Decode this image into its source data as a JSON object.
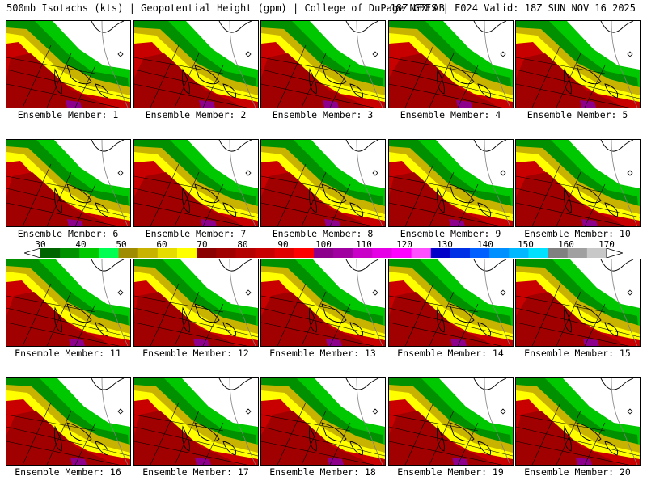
{
  "header": {
    "title": "500mb Isotachs (kts) | Geopotential Height (gpm) | College of DuPage NEXLAB",
    "valid": "18Z GEFS | F024 Valid: 18Z SUN NOV 16 2025"
  },
  "panels": [
    {
      "label": "Ensemble Member: 1"
    },
    {
      "label": "Ensemble Member: 2"
    },
    {
      "label": "Ensemble Member: 3"
    },
    {
      "label": "Ensemble Member: 4"
    },
    {
      "label": "Ensemble Member: 5"
    },
    {
      "label": "Ensemble Member: 6"
    },
    {
      "label": "Ensemble Member: 7"
    },
    {
      "label": "Ensemble Member: 8"
    },
    {
      "label": "Ensemble Member: 9"
    },
    {
      "label": "Ensemble Member: 10"
    },
    {
      "label": "Ensemble Member: 11"
    },
    {
      "label": "Ensemble Member: 12"
    },
    {
      "label": "Ensemble Member: 13"
    },
    {
      "label": "Ensemble Member: 14"
    },
    {
      "label": "Ensemble Member: 15"
    },
    {
      "label": "Ensemble Member: 16"
    },
    {
      "label": "Ensemble Member: 17"
    },
    {
      "label": "Ensemble Member: 18"
    },
    {
      "label": "Ensemble Member: 19"
    },
    {
      "label": "Ensemble Member: 20"
    }
  ],
  "colorbar": {
    "labels": [
      "30",
      "40",
      "50",
      "60",
      "70",
      "80",
      "90",
      "100",
      "110",
      "120",
      "130",
      "140",
      "150",
      "160",
      "170"
    ],
    "colors": [
      "#006400",
      "#009000",
      "#00c800",
      "#00ff50",
      "#a08c00",
      "#c8b400",
      "#e6dc00",
      "#ffff00",
      "#8b0000",
      "#a00000",
      "#b40000",
      "#c80000",
      "#e00000",
      "#ff0000",
      "#8c008c",
      "#a000a0",
      "#c800c8",
      "#e600e6",
      "#ff00ff",
      "#ff50ff",
      "#0000c8",
      "#0030e6",
      "#0060ff",
      "#0090ff",
      "#00b8ff",
      "#00e0ff",
      "#808080",
      "#a0a0a0",
      "#c8c8c8"
    ]
  },
  "theme": {
    "red": "#c80000",
    "darkred": "#a00000",
    "yellow": "#ffff00",
    "olive": "#c8b400",
    "green": "#00c800",
    "darkgreen": "#009000",
    "purple": "#8c008c"
  }
}
